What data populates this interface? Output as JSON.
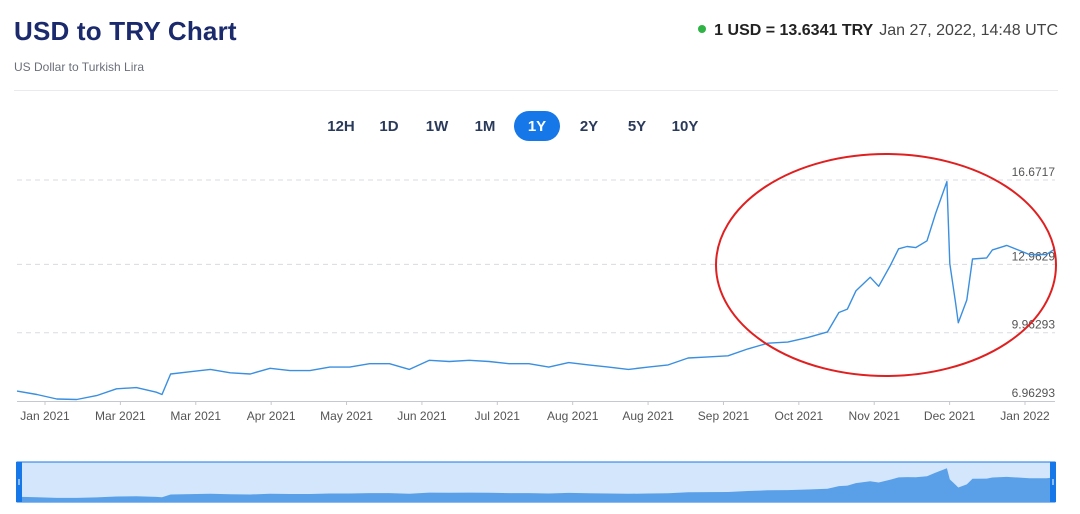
{
  "header": {
    "title": "USD to TRY Chart",
    "subtitle": "US Dollar to Turkish Lira",
    "rate": "1 USD = 13.6341 TRY",
    "timestamp": "Jan 27, 2022, 14:48 UTC",
    "status_color": "#2fb344"
  },
  "tabs": [
    {
      "label": "12H",
      "active": false
    },
    {
      "label": "1D",
      "active": false
    },
    {
      "label": "1W",
      "active": false
    },
    {
      "label": "1M",
      "active": false
    },
    {
      "label": "1Y",
      "active": true
    },
    {
      "label": "2Y",
      "active": false
    },
    {
      "label": "5Y",
      "active": false
    },
    {
      "label": "10Y",
      "active": false
    }
  ],
  "colors": {
    "line": "#3a8fe0",
    "fill": "#5aa0e8",
    "annotation": "#e02020",
    "accent": "#1677e8"
  },
  "chart_data": {
    "type": "line",
    "title": "USD to TRY Chart",
    "y_ticks": [
      "16.6717",
      "12.9629",
      "9.96293",
      "6.96293"
    ],
    "ylim": [
      6.96293,
      16.6717
    ],
    "x_tick_labels": [
      "Jan 2021",
      "Mar 2021",
      "Mar 2021",
      "Apr 2021",
      "May 2021",
      "Jun 2021",
      "Jul 2021",
      "Aug 2021",
      "Aug 2021",
      "Sep 2021",
      "Oct 2021",
      "Nov 2021",
      "Dec 2021",
      "Jan 2022"
    ],
    "grid": true,
    "legend": "none",
    "annotation": "red ellipse highlighting Nov 2021 – Jan 2022",
    "series": [
      {
        "values": [
          [
            "2021-01-27",
            7.4
          ],
          [
            "2021-02-03",
            7.25
          ],
          [
            "2021-02-10",
            7.05
          ],
          [
            "2021-02-17",
            7.03
          ],
          [
            "2021-02-24",
            7.2
          ],
          [
            "2021-03-03",
            7.5
          ],
          [
            "2021-03-10",
            7.55
          ],
          [
            "2021-03-17",
            7.35
          ],
          [
            "2021-03-19",
            7.25
          ],
          [
            "2021-03-22",
            8.15
          ],
          [
            "2021-03-29",
            8.25
          ],
          [
            "2021-04-05",
            8.35
          ],
          [
            "2021-04-12",
            8.2
          ],
          [
            "2021-04-19",
            8.15
          ],
          [
            "2021-04-26",
            8.4
          ],
          [
            "2021-05-03",
            8.3
          ],
          [
            "2021-05-10",
            8.3
          ],
          [
            "2021-05-17",
            8.45
          ],
          [
            "2021-05-24",
            8.45
          ],
          [
            "2021-05-31",
            8.6
          ],
          [
            "2021-06-07",
            8.6
          ],
          [
            "2021-06-14",
            8.35
          ],
          [
            "2021-06-21",
            8.75
          ],
          [
            "2021-06-28",
            8.7
          ],
          [
            "2021-07-05",
            8.75
          ],
          [
            "2021-07-12",
            8.7
          ],
          [
            "2021-07-19",
            8.6
          ],
          [
            "2021-07-26",
            8.6
          ],
          [
            "2021-08-02",
            8.45
          ],
          [
            "2021-08-09",
            8.65
          ],
          [
            "2021-08-16",
            8.55
          ],
          [
            "2021-08-23",
            8.45
          ],
          [
            "2021-08-30",
            8.35
          ],
          [
            "2021-09-06",
            8.45
          ],
          [
            "2021-09-13",
            8.55
          ],
          [
            "2021-09-20",
            8.85
          ],
          [
            "2021-09-27",
            8.9
          ],
          [
            "2021-10-04",
            8.95
          ],
          [
            "2021-10-11",
            9.25
          ],
          [
            "2021-10-18",
            9.5
          ],
          [
            "2021-10-25",
            9.55
          ],
          [
            "2021-11-01",
            9.75
          ],
          [
            "2021-11-08",
            10.0
          ],
          [
            "2021-11-12",
            10.85
          ],
          [
            "2021-11-15",
            11.0
          ],
          [
            "2021-11-18",
            11.8
          ],
          [
            "2021-11-23",
            12.4
          ],
          [
            "2021-11-26",
            12.0
          ],
          [
            "2021-11-30",
            12.9
          ],
          [
            "2021-12-03",
            13.65
          ],
          [
            "2021-12-06",
            13.75
          ],
          [
            "2021-12-09",
            13.7
          ],
          [
            "2021-12-13",
            14.0
          ],
          [
            "2021-12-16",
            15.2
          ],
          [
            "2021-12-20",
            16.6
          ],
          [
            "2021-12-21",
            13.0
          ],
          [
            "2021-12-23",
            11.3
          ],
          [
            "2021-12-24",
            10.4
          ],
          [
            "2021-12-27",
            11.4
          ],
          [
            "2021-12-29",
            13.2
          ],
          [
            "2022-01-03",
            13.25
          ],
          [
            "2022-01-05",
            13.6
          ],
          [
            "2022-01-10",
            13.8
          ],
          [
            "2022-01-14",
            13.6
          ],
          [
            "2022-01-18",
            13.4
          ],
          [
            "2022-01-24",
            13.4
          ],
          [
            "2022-01-27",
            13.65
          ]
        ]
      }
    ]
  }
}
